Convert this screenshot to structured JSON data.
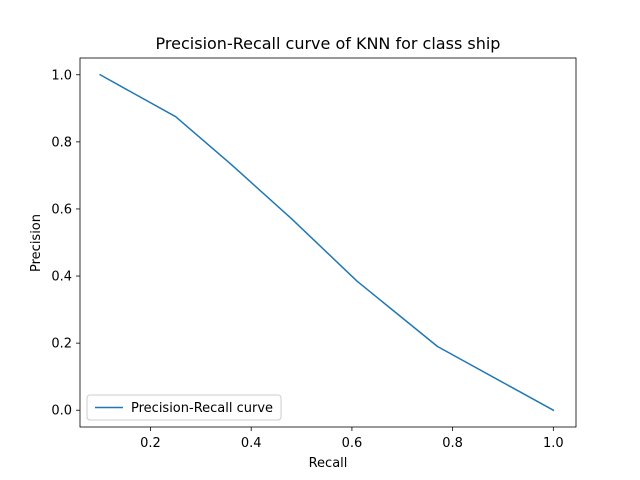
{
  "chart_data": {
    "type": "line",
    "title": "Precision-Recall curve of KNN for class ship",
    "xlabel": "Recall",
    "ylabel": "Precision",
    "xlim": [
      0.06,
      1.045
    ],
    "ylim": [
      -0.05,
      1.05
    ],
    "xticks": [
      0.2,
      0.4,
      0.6,
      0.8,
      1.0
    ],
    "yticks": [
      0.0,
      0.2,
      0.4,
      0.6,
      0.8,
      1.0
    ],
    "xtick_labels": [
      "0.2",
      "0.4",
      "0.6",
      "0.8",
      "1.0"
    ],
    "ytick_labels": [
      "0.0",
      "0.2",
      "0.4",
      "0.6",
      "0.8",
      "1.0"
    ],
    "grid": false,
    "legend_position": "lower-left",
    "series": [
      {
        "name": "Precision-Recall curve",
        "color": "#1f77b4",
        "x": [
          0.1,
          0.25,
          0.36,
          0.48,
          0.61,
          0.77,
          1.0
        ],
        "y": [
          1.0,
          0.875,
          0.733,
          0.571,
          0.385,
          0.19,
          0.0
        ]
      }
    ]
  }
}
